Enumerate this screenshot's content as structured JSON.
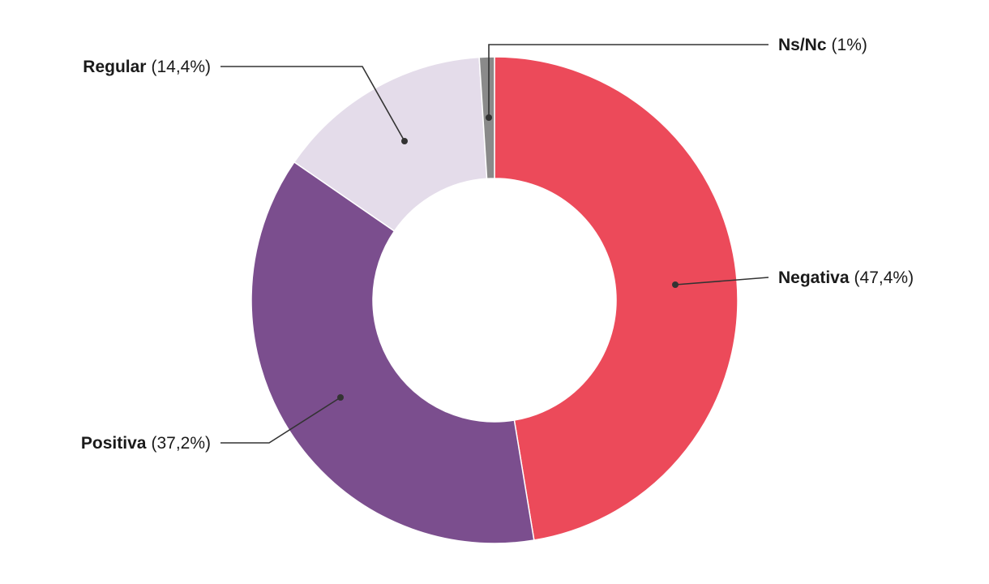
{
  "chart_data": {
    "type": "pie",
    "variant": "donut",
    "title": "",
    "slices": [
      {
        "label": "Negativa",
        "value": 47.4,
        "value_text": "(47,4%)",
        "color": "#ec4a5a"
      },
      {
        "label": "Positiva",
        "value": 37.2,
        "value_text": "(37,2%)",
        "color": "#7b4e8e"
      },
      {
        "label": "Regular",
        "value": 14.4,
        "value_text": "(14,4%)",
        "color": "#e4dcea"
      },
      {
        "label": "Ns/Nc",
        "value": 1,
        "value_text": "(1%)",
        "color": "#8a8a8a"
      }
    ],
    "start_angle": "12 o'clock",
    "direction": "clockwise",
    "legend": "none (callout labels)",
    "slice_separator_color": "#ffffff"
  }
}
